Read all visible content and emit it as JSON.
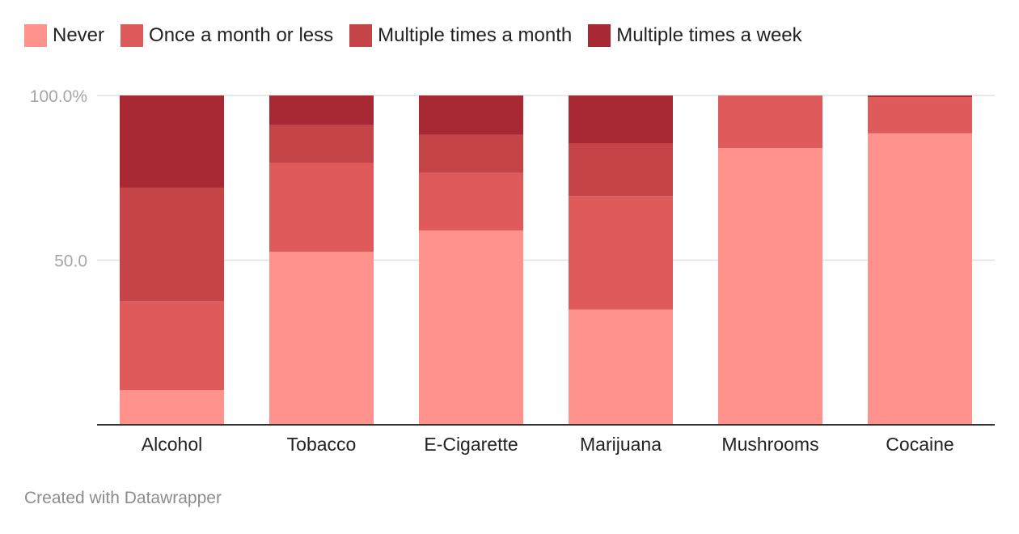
{
  "chart_data": {
    "type": "bar",
    "stacked": true,
    "categories": [
      "Alcohol",
      "Tobacco",
      "E-Cigarette",
      "Marijuana",
      "Mushrooms",
      "Cocaine"
    ],
    "series": [
      {
        "name": "Never",
        "color": "#ff928c",
        "values": [
          10.5,
          52.5,
          59.0,
          35.0,
          84.0,
          88.5
        ]
      },
      {
        "name": "Once a month or less",
        "color": "#df5b5b",
        "values": [
          27.0,
          27.0,
          17.5,
          34.5,
          16.0,
          11.0
        ]
      },
      {
        "name": "Multiple times a month",
        "color": "#c54447",
        "values": [
          34.5,
          11.5,
          11.5,
          16.0,
          0.0,
          0.0
        ]
      },
      {
        "name": "Multiple times a week",
        "color": "#a82933",
        "values": [
          28.0,
          9.0,
          12.0,
          14.5,
          0.0,
          0.5
        ]
      }
    ],
    "ylim": [
      0,
      100
    ],
    "yticks": [
      {
        "value": 50,
        "label": "50.0"
      },
      {
        "value": 100,
        "label": "100.0%"
      }
    ],
    "grid": true,
    "legend_position": "top-left"
  },
  "footer": {
    "credit": "Created with Datawrapper"
  }
}
